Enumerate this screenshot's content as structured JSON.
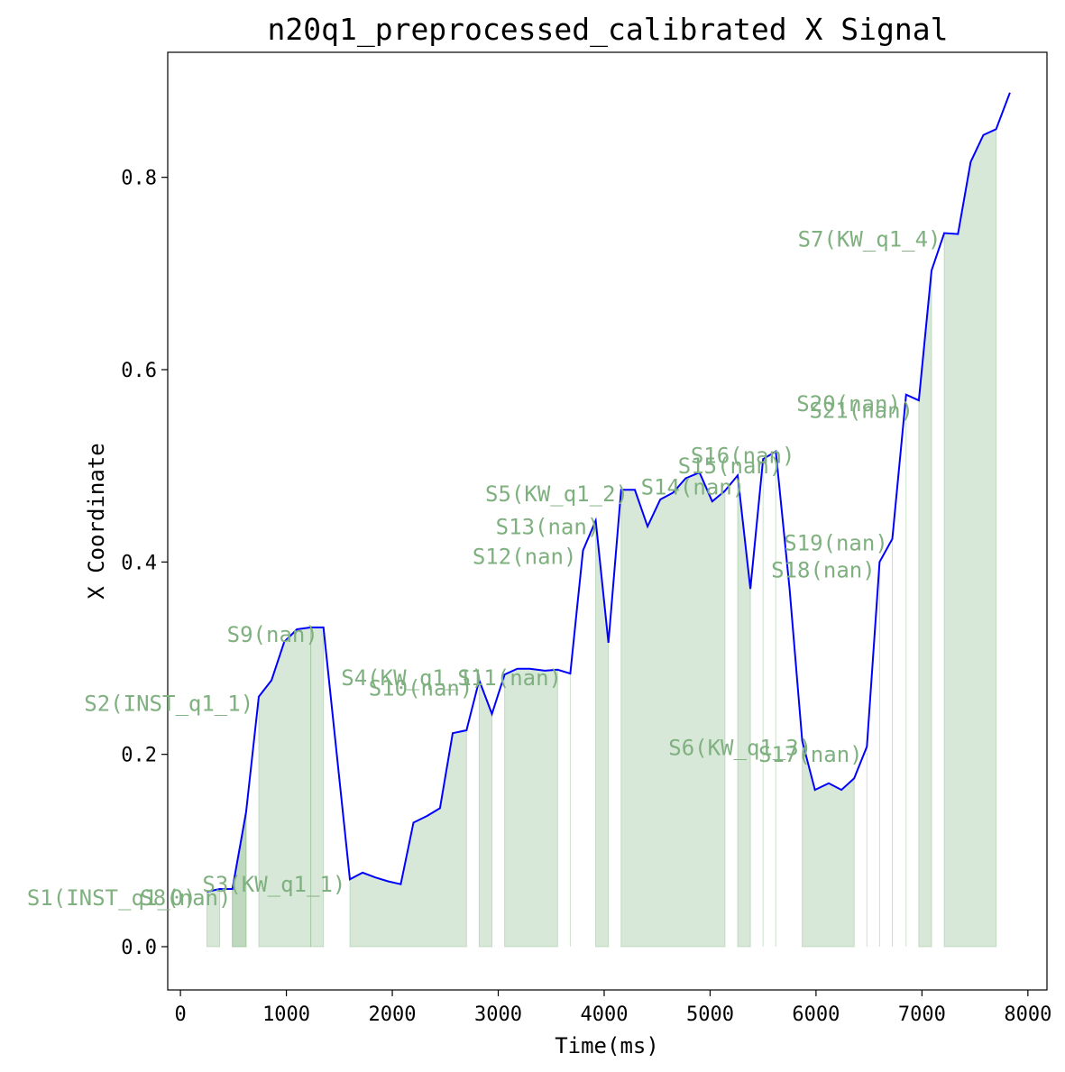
{
  "chart_data": {
    "type": "line",
    "title": "n20q1_preprocessed_calibrated X Signal",
    "xlabel": "Time(ms)",
    "ylabel": "X Coordinate",
    "xlim": [
      -120,
      8180
    ],
    "ylim": [
      -0.045,
      0.93
    ],
    "xticks": [
      0,
      1000,
      2000,
      3000,
      4000,
      5000,
      6000,
      7000,
      8000
    ],
    "yticks": [
      0.0,
      0.2,
      0.4,
      0.6,
      0.8
    ],
    "ytick_labels": [
      "0.0",
      "0.2",
      "0.4",
      "0.6",
      "0.8"
    ],
    "grid": false,
    "colors": {
      "line": "#0000ff",
      "segment_fill": "#8fbc8f",
      "segment_label": "#7fb07f"
    },
    "series": [
      {
        "x": [
          250,
          370,
          490,
          620,
          740,
          860,
          980,
          1100,
          1230,
          1350,
          1600,
          1720,
          1840,
          1960,
          2080,
          2200,
          2330,
          2450,
          2570,
          2700,
          2820,
          2940,
          3060,
          3180,
          3300,
          3440,
          3560,
          3680,
          3800,
          3920,
          4040,
          4160,
          4290,
          4410,
          4530,
          4650,
          4770,
          4900,
          5020,
          5140,
          5260,
          5380,
          5500,
          5620,
          5750,
          5870,
          5990,
          6120,
          6240,
          6360,
          6480,
          6600,
          6720,
          6850,
          6970,
          7090,
          7210,
          7340,
          7460,
          7580,
          7700,
          7830
        ],
        "y": [
          0.057,
          0.06,
          0.06,
          0.14,
          0.26,
          0.277,
          0.317,
          0.33,
          0.332,
          0.332,
          0.07,
          0.077,
          0.072,
          0.068,
          0.065,
          0.129,
          0.136,
          0.144,
          0.222,
          0.225,
          0.277,
          0.242,
          0.283,
          0.289,
          0.289,
          0.287,
          0.288,
          0.284,
          0.412,
          0.443,
          0.316,
          0.475,
          0.475,
          0.437,
          0.465,
          0.472,
          0.487,
          0.493,
          0.463,
          0.474,
          0.49,
          0.372,
          0.507,
          0.515,
          0.373,
          0.214,
          0.163,
          0.17,
          0.163,
          0.175,
          0.208,
          0.4,
          0.424,
          0.574,
          0.568,
          0.703,
          0.742,
          0.741,
          0.816,
          0.844,
          0.85,
          0.888
        ]
      }
    ],
    "segments": [
      {
        "label": "S1(INST_q1_0)",
        "start": 250,
        "end": 370
      },
      {
        "label": "S8(nan)",
        "start": 490,
        "end": 620
      },
      {
        "label": "S3(KW_q1_1)",
        "start": 490,
        "end": 620
      },
      {
        "label": "S2(INST_q1_1)",
        "start": 740,
        "end": 1230
      },
      {
        "label": "S9(nan)",
        "start": 1230,
        "end": 1350
      },
      {
        "label": "S4(KW_q1_1)",
        "start": 1600,
        "end": 2700
      },
      {
        "label": "S10(nan)",
        "start": 2820,
        "end": 2940
      },
      {
        "label": "S11(nan)",
        "start": 3060,
        "end": 3560
      },
      {
        "label": "S12(nan)",
        "start": 3680,
        "end": 3680
      },
      {
        "label": "S13(nan)",
        "start": 3920,
        "end": 4040
      },
      {
        "label": "S5(KW_q1_2)",
        "start": 4160,
        "end": 5140
      },
      {
        "label": "S14(nan)",
        "start": 5260,
        "end": 5380
      },
      {
        "label": "S15(nan)",
        "start": 5500,
        "end": 5500
      },
      {
        "label": "S16(nan)",
        "start": 5620,
        "end": 5620
      },
      {
        "label": "S6(KW_q1_3)",
        "start": 5870,
        "end": 6360
      },
      {
        "label": "S17(nan)",
        "start": 6480,
        "end": 6480
      },
      {
        "label": "S18(nan)",
        "start": 6600,
        "end": 6600
      },
      {
        "label": "S19(nan)",
        "start": 6720,
        "end": 6720
      },
      {
        "label": "S20(nan)",
        "start": 6850,
        "end": 6850
      },
      {
        "label": "S21(nan)",
        "start": 6970,
        "end": 7090
      },
      {
        "label": "S7(KW_q1_4)",
        "start": 7210,
        "end": 7700
      }
    ],
    "annotations": [
      {
        "text": "S1(INST_q1_0)",
        "x": 150,
        "y": 0.043
      },
      {
        "text": "S8(nan)",
        "x": 480,
        "y": 0.043
      },
      {
        "text": "S3(KW_q1_1)",
        "x": 1560,
        "y": 0.057
      },
      {
        "text": "S2(INST_q1_1)",
        "x": 690,
        "y": 0.245
      },
      {
        "text": "S9(nan)",
        "x": 1300,
        "y": 0.317
      },
      {
        "text": "S4(KW_q1_1)",
        "x": 2870,
        "y": 0.272
      },
      {
        "text": "S10(nan)",
        "x": 2760,
        "y": 0.261
      },
      {
        "text": "S11(nan)",
        "x": 3600,
        "y": 0.272
      },
      {
        "text": "S12(nan)",
        "x": 3740,
        "y": 0.398
      },
      {
        "text": "S13(nan)",
        "x": 3960,
        "y": 0.429
      },
      {
        "text": "S5(KW_q1_2)",
        "x": 4230,
        "y": 0.463
      },
      {
        "text": "S14(nan)",
        "x": 5330,
        "y": 0.47
      },
      {
        "text": "S15(nan)",
        "x": 5680,
        "y": 0.492
      },
      {
        "text": "S16(nan)",
        "x": 5800,
        "y": 0.503
      },
      {
        "text": "S6(KW_q1_3)",
        "x": 5960,
        "y": 0.199
      },
      {
        "text": "S17(nan)",
        "x": 6440,
        "y": 0.192
      },
      {
        "text": "S18(nan)",
        "x": 6560,
        "y": 0.384
      },
      {
        "text": "S19(nan)",
        "x": 6680,
        "y": 0.412
      },
      {
        "text": "S20(nan)",
        "x": 6800,
        "y": 0.557
      },
      {
        "text": "S21(nan)",
        "x": 6920,
        "y": 0.55
      },
      {
        "text": "S7(KW_q1_4)",
        "x": 7180,
        "y": 0.728
      }
    ]
  }
}
